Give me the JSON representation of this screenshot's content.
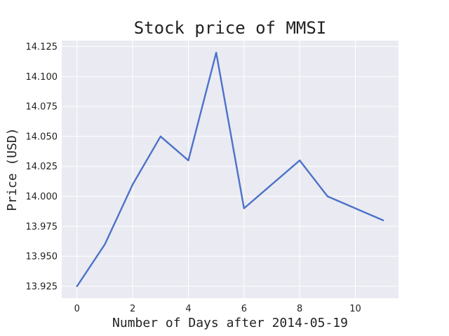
{
  "chart_data": {
    "type": "line",
    "title": "Stock price of MMSI",
    "xlabel": "Number of Days after 2014-05-19",
    "ylabel": "Price (USD)",
    "x": [
      0,
      1,
      2,
      3,
      4,
      5,
      6,
      7,
      8,
      9,
      10,
      11
    ],
    "series": [
      {
        "values": [
          13.925,
          13.96,
          14.01,
          14.05,
          14.03,
          14.12,
          13.99,
          14.01,
          14.03,
          14.0,
          13.99,
          13.98
        ]
      }
    ],
    "xlim": [
      -0.55,
      11.55
    ],
    "ylim": [
      13.915,
      14.13
    ],
    "xticks": [
      0,
      2,
      4,
      6,
      8,
      10
    ],
    "xtick_labels": [
      "0",
      "2",
      "4",
      "6",
      "8",
      "10"
    ],
    "yticks": [
      13.925,
      13.95,
      13.975,
      14.0,
      14.025,
      14.05,
      14.075,
      14.1,
      14.125
    ],
    "ytick_labels": [
      "13.925",
      "13.950",
      "13.975",
      "14.000",
      "14.025",
      "14.050",
      "14.075",
      "14.100",
      "14.125"
    ],
    "grid": true,
    "colors": {
      "line": "#4c72c9",
      "plot_background": "#eaeaf2",
      "grid": "#ffffff"
    }
  }
}
